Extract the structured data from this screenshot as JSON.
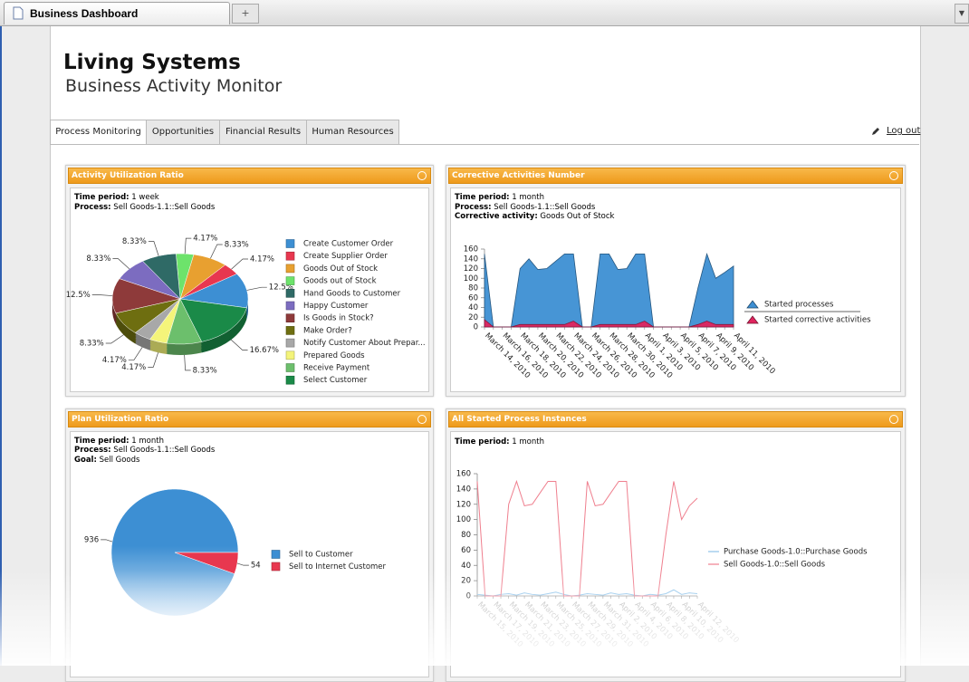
{
  "browser": {
    "tab_title": "Business Dashboard"
  },
  "header": {
    "title": "Living Systems",
    "subtitle": "Business Activity Monitor"
  },
  "tabs": [
    "Process Monitoring",
    "Opportunities",
    "Financial Results",
    "Human Resources"
  ],
  "logout": "Log out",
  "panels": [
    {
      "title": "Activity Utilization Ratio",
      "meta": [
        {
          "label": "Time period:",
          "value": "1 week"
        },
        {
          "label": "Process:",
          "value": "Sell Goods-1.1::Sell Goods"
        }
      ]
    },
    {
      "title": "Corrective Activities Number",
      "meta": [
        {
          "label": "Time period:",
          "value": "1 month"
        },
        {
          "label": "Process:",
          "value": "Sell Goods-1.1::Sell Goods"
        },
        {
          "label": "Corrective activity:",
          "value": "Goods Out of Stock"
        }
      ]
    },
    {
      "title": "Plan Utilization Ratio",
      "meta": [
        {
          "label": "Time period:",
          "value": "1 month"
        },
        {
          "label": "Process:",
          "value": "Sell Goods-1.1::Sell Goods"
        },
        {
          "label": "Goal:",
          "value": "Sell Goods"
        }
      ]
    },
    {
      "title": "All Started Process Instances",
      "meta": [
        {
          "label": "Time period:",
          "value": "1 month"
        }
      ]
    }
  ],
  "chart_data": [
    {
      "type": "pie",
      "categories": [
        "Create Customer Order",
        "Create Supplier Order",
        "Goods Out of Stock",
        "Goods out of Stock",
        "Hand Goods to Customer",
        "Happy Customer",
        "Is Goods in Stock?",
        "Make Order?",
        "Notify Customer About Prepar...",
        "Prepared Goods",
        "Receive Payment",
        "Select Customer"
      ],
      "values": [
        12.5,
        4.17,
        8.33,
        4.17,
        8.33,
        8.33,
        12.5,
        8.33,
        4.17,
        4.17,
        8.33,
        16.67
      ],
      "value_labels": [
        "12.5%",
        "4.17%",
        "8.33%",
        "4.17%",
        "8.33%",
        "8.33%",
        "12.5%",
        "8.33%",
        "4.17%",
        "4.17%",
        "8.33%",
        "16.67%"
      ],
      "colors": [
        "#3d8fd3",
        "#e8374f",
        "#e8a030",
        "#6de36b",
        "#2f6a66",
        "#7c6cc0",
        "#8e3a3a",
        "#6e6e10",
        "#a8a8a8",
        "#f4f47a",
        "#6cbf6c",
        "#1a8a48"
      ]
    },
    {
      "type": "area",
      "categories": [
        "March 14, 2010",
        null,
        "March 16, 2010",
        null,
        "March 18, 2010",
        null,
        "March 20, 2010",
        null,
        "March 22, 2010",
        null,
        "March 24, 2010",
        null,
        "March 26, 2010",
        null,
        "March 28, 2010",
        null,
        "March 30, 2010",
        null,
        "April 1, 2010",
        null,
        "April 3, 2010",
        null,
        "April 5, 2010",
        null,
        "April 7, 2010",
        null,
        "April 9, 2010",
        null,
        "April 11, 2010"
      ],
      "series": [
        {
          "name": "Started processes",
          "color": "#3d8fd3",
          "values": [
            150,
            0,
            0,
            0,
            120,
            140,
            118,
            120,
            135,
            150,
            150,
            0,
            0,
            150,
            150,
            118,
            120,
            150,
            150,
            0,
            0,
            0,
            0,
            0,
            80,
            150,
            100,
            112,
            125
          ]
        },
        {
          "name": "Started corrective activities",
          "color": "#e0245e",
          "values": [
            15,
            0,
            0,
            0,
            5,
            5,
            5,
            5,
            5,
            5,
            12,
            0,
            0,
            5,
            5,
            5,
            5,
            5,
            12,
            0,
            0,
            0,
            0,
            0,
            5,
            12,
            5,
            5,
            5
          ]
        }
      ],
      "ylim": [
        0,
        160
      ],
      "yticks": [
        0,
        20,
        40,
        60,
        80,
        100,
        120,
        140,
        160
      ]
    },
    {
      "type": "pie",
      "categories": [
        "Sell to Customer",
        "Sell to Internet Customer"
      ],
      "values": [
        936,
        54
      ],
      "colors": [
        "#3d8fd3",
        "#e8374f"
      ]
    },
    {
      "type": "line",
      "categories": [
        "March 15, 2010",
        null,
        "March 17, 2010",
        null,
        "March 19, 2010",
        null,
        "March 21, 2010",
        null,
        "March 23, 2010",
        null,
        "March 25, 2010",
        null,
        "March 27, 2010",
        null,
        "March 29, 2010",
        null,
        "March 31, 2010",
        null,
        "April 2, 2010",
        null,
        "April 4, 2010",
        null,
        "April 6, 2010",
        null,
        "April 8, 2010",
        null,
        "April 10, 2010",
        null,
        "April 12, 2010"
      ],
      "series": [
        {
          "name": "Purchase Goods-1.0::Purchase Goods",
          "color": "#8ec3ea",
          "values": [
            2,
            1,
            0,
            2,
            3,
            1,
            4,
            2,
            1,
            3,
            5,
            2,
            0,
            1,
            3,
            2,
            1,
            4,
            2,
            3,
            1,
            0,
            2,
            1,
            3,
            8,
            2,
            4,
            3
          ]
        },
        {
          "name": "Sell Goods-1.0::Sell Goods",
          "color": "#ef7f8e",
          "values": [
            150,
            0,
            0,
            0,
            120,
            150,
            118,
            120,
            135,
            150,
            150,
            0,
            0,
            0,
            150,
            118,
            120,
            135,
            150,
            150,
            0,
            0,
            0,
            0,
            80,
            150,
            100,
            118,
            128
          ]
        }
      ],
      "ylim": [
        0,
        160
      ],
      "yticks": [
        0,
        20,
        40,
        60,
        80,
        100,
        120,
        140,
        160
      ]
    }
  ]
}
